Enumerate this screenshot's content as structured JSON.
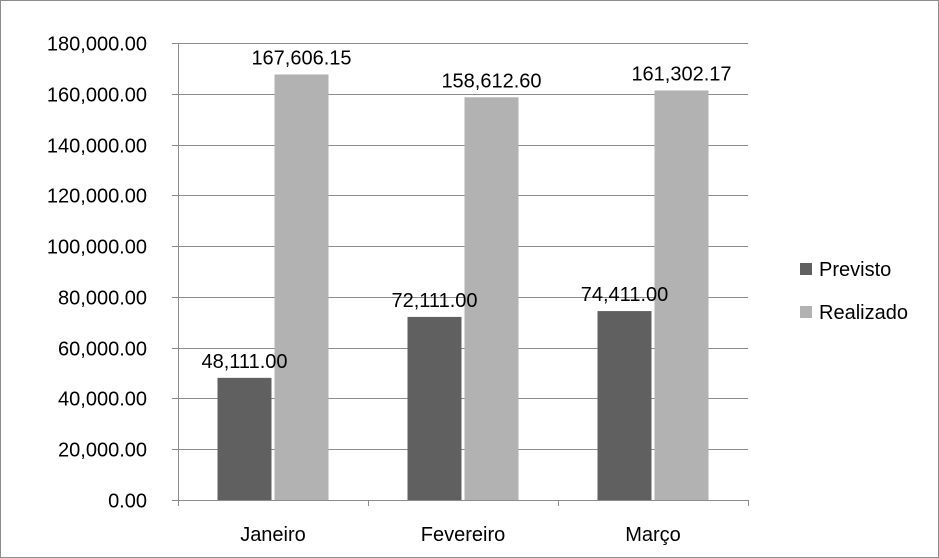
{
  "chart_data": {
    "type": "bar",
    "title": "",
    "xlabel": "",
    "ylabel": "",
    "categories": [
      "Janeiro",
      "Fevereiro",
      "Março"
    ],
    "series": [
      {
        "name": "Previsto",
        "color": "#606060",
        "values": [
          48111.0,
          72111.0,
          74411.0
        ],
        "labels": [
          "48,111.00",
          "72,111.00",
          "74,411.00"
        ]
      },
      {
        "name": "Realizado",
        "color": "#b2b2b2",
        "values": [
          167606.15,
          158612.6,
          161302.17
        ],
        "labels": [
          "167,606.15",
          "158,612.60",
          "161,302.17"
        ]
      }
    ],
    "ylim": [
      0,
      180000
    ],
    "yticks": [
      0,
      20000,
      40000,
      60000,
      80000,
      100000,
      120000,
      140000,
      160000,
      180000
    ],
    "ytick_labels": [
      "0.00",
      "20,000.00",
      "40,000.00",
      "60,000.00",
      "80,000.00",
      "100,000.00",
      "120,000.00",
      "140,000.00",
      "160,000.00",
      "180,000.00"
    ],
    "grid": true,
    "legend": "right"
  },
  "colors": {
    "border": "#8c8c8c",
    "gridline": "#8c8c8c",
    "axis": "#8c8c8c"
  }
}
